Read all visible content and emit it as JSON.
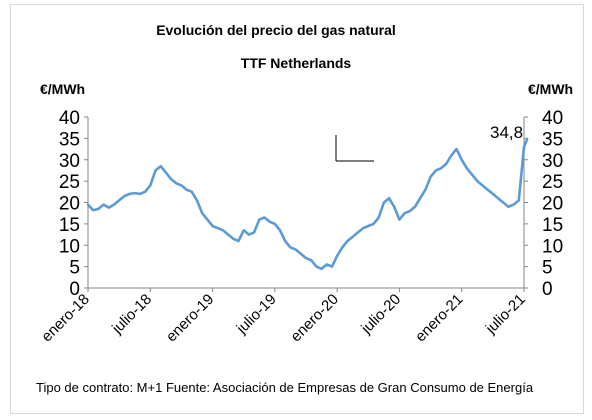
{
  "chart_data": {
    "type": "line",
    "title": "Evolución del precio del gas natural",
    "subtitle": "TTF Netherlands",
    "ylabel_left": "€/MWh",
    "ylabel_right": "€/MWh",
    "ylim": [
      0,
      40
    ],
    "yticks": [
      "0",
      "5",
      "10",
      "15",
      "20",
      "25",
      "30",
      "35",
      "40"
    ],
    "x_tick_labels": [
      "enero-18",
      "julio-18",
      "enero-19",
      "julio-19",
      "enero-20",
      "julio-20",
      "enero-21",
      "julio-21"
    ],
    "grid": false,
    "color": "#5b9bd5",
    "annotation": {
      "text": "34,8",
      "x": 42.3,
      "y": 34.8
    },
    "series": [
      {
        "x": [
          0,
          0.5,
          1,
          1.5,
          2,
          2.5,
          3,
          3.5,
          4,
          4.5,
          5,
          5.5,
          6,
          6.5,
          7,
          7.5,
          8,
          8.5,
          9,
          9.5,
          10,
          10.5,
          11,
          11.5,
          12,
          12.5,
          13,
          13.5,
          14,
          14.5,
          15,
          15.5,
          16,
          16.5,
          17,
          17.5,
          18,
          18.5,
          19,
          19.5,
          20,
          20.5,
          21,
          21.5,
          22,
          22.5,
          23,
          23.5,
          24,
          24.5,
          25,
          25.5,
          26,
          26.5,
          27,
          27.5,
          28,
          28.5,
          29,
          29.5,
          30,
          30.5,
          31,
          31.5,
          32,
          32.5,
          33,
          33.5,
          34,
          34.5,
          35,
          35.5,
          36,
          36.5,
          37,
          37.5,
          38,
          38.5,
          39,
          39.5,
          40,
          40.5,
          41,
          41.5,
          42,
          42.3
        ],
        "values": [
          19.5,
          18.2,
          18.5,
          19.5,
          18.8,
          19.5,
          20.5,
          21.5,
          22,
          22.2,
          22,
          22.5,
          24,
          27.5,
          28.5,
          27,
          25.5,
          24.5,
          24,
          23,
          22.5,
          20.5,
          17.5,
          16,
          14.5,
          14,
          13.5,
          12.5,
          11.5,
          11,
          13.5,
          12.5,
          13,
          16,
          16.5,
          15.5,
          15,
          13.5,
          11,
          9.5,
          9,
          8,
          7,
          6.5,
          5,
          4.5,
          5.5,
          5,
          7.5,
          9.5,
          11,
          12,
          13,
          14,
          14.5,
          15,
          16.5,
          20,
          21,
          19,
          16,
          17.5,
          18,
          19,
          21,
          23,
          26,
          27.5,
          28,
          29,
          31,
          32.5,
          30,
          28,
          26.5,
          25,
          24,
          23,
          22,
          21,
          20,
          19,
          19.5,
          20.5,
          33,
          34.8
        ]
      }
    ]
  },
  "footer": "Tipo de contrato: M+1  Fuente: Asociación de Empresas de Gran Consumo de Energía"
}
